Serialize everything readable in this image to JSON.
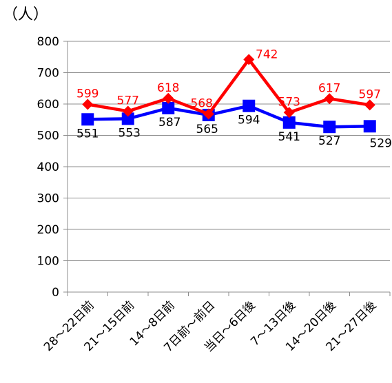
{
  "chart_data": {
    "type": "line",
    "unit_label": "（人）",
    "categories": [
      "28～22日前",
      "21～15日前",
      "14～8日前",
      "7日前～前日",
      "当日～6日後",
      "7～13日後",
      "14～20日後",
      "21～27日後"
    ],
    "ylim": [
      0,
      800
    ],
    "yticks": [
      0,
      100,
      200,
      300,
      400,
      500,
      600,
      700,
      800
    ],
    "grid": true,
    "legend": "none",
    "series": [
      {
        "values": [
          599,
          577,
          618,
          568,
          742,
          573,
          617,
          597
        ],
        "color": "#ff0000",
        "marker": "diamond",
        "label_color": "#ff0000",
        "label_position": "above"
      },
      {
        "values": [
          551,
          553,
          587,
          565,
          594,
          541,
          527,
          529
        ],
        "color": "#0000ff",
        "marker": "square",
        "label_color": "#000000",
        "label_position": "below"
      }
    ]
  }
}
